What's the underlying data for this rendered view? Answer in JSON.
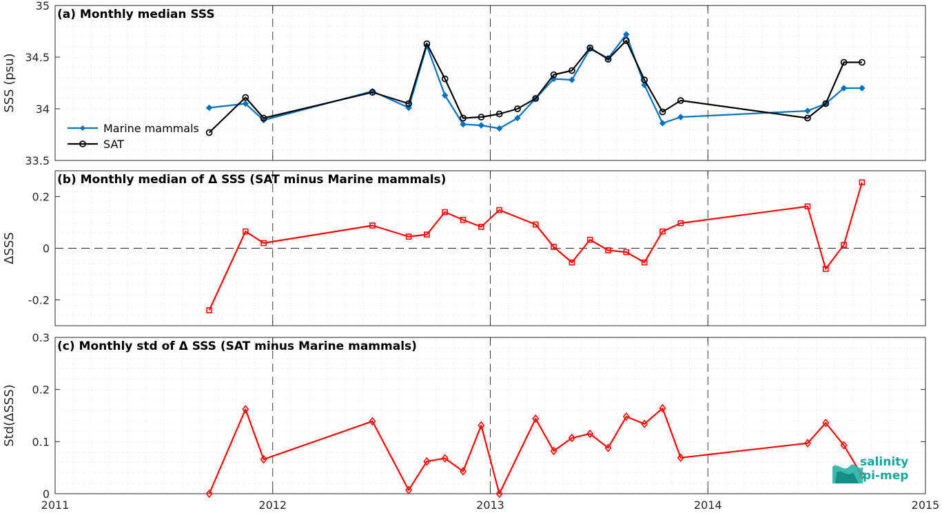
{
  "chart_data": [
    {
      "type": "line",
      "title": "(a) Monthly median SSS",
      "ylabel": "SSS (psu)",
      "ylim": [
        33.5,
        35
      ],
      "yticks": [
        "33.5",
        "34",
        "34.5",
        "35"
      ],
      "grid": true,
      "legend_position": "left",
      "series": [
        {
          "name": "Marine mammals",
          "color": "#0072BD",
          "marker": "diamond-filled",
          "x": [
            "2011-09",
            "2011-11",
            "2011-12",
            "2012-06",
            "2012-08",
            "2012-09",
            "2012-10",
            "2012-11",
            "2012-12",
            "2013-01",
            "2013-02",
            "2013-03",
            "2013-04",
            "2013-05",
            "2013-06",
            "2013-07",
            "2013-08",
            "2013-09",
            "2013-10",
            "2013-11",
            "2014-06",
            "2014-07",
            "2014-08",
            "2014-09"
          ],
          "y": [
            34.01,
            34.05,
            33.89,
            34.17,
            34.01,
            34.61,
            34.13,
            33.85,
            33.84,
            33.81,
            33.91,
            34.1,
            34.29,
            34.28,
            34.58,
            34.49,
            34.72,
            34.23,
            33.86,
            33.92,
            33.98,
            34.05,
            34.2,
            34.2
          ]
        },
        {
          "name": "SAT",
          "color": "#000000",
          "marker": "circle-open",
          "x": [
            "2011-09",
            "2011-11",
            "2011-12",
            "2012-06",
            "2012-08",
            "2012-09",
            "2012-10",
            "2012-11",
            "2012-12",
            "2013-01",
            "2013-02",
            "2013-03",
            "2013-04",
            "2013-05",
            "2013-06",
            "2013-07",
            "2013-08",
            "2013-09",
            "2013-10",
            "2013-11",
            "2014-06",
            "2014-07",
            "2014-08",
            "2014-09"
          ],
          "y": [
            33.77,
            34.11,
            33.91,
            34.16,
            34.05,
            34.63,
            34.29,
            33.91,
            33.92,
            33.95,
            34.0,
            34.1,
            34.33,
            34.37,
            34.59,
            34.48,
            34.66,
            34.28,
            33.97,
            34.08,
            33.91,
            34.05,
            34.45,
            34.45
          ]
        }
      ]
    },
    {
      "type": "line",
      "title": "(b) Monthly median of Δ SSS (SAT minus Marine mammals)",
      "ylabel": "ΔSSS",
      "ylim": [
        -0.3,
        0.3
      ],
      "yticks": [
        "-0.2",
        "0",
        "0.2"
      ],
      "zero_line": true,
      "grid": true,
      "series": [
        {
          "color": "#FF0000",
          "marker": "square-open",
          "x": [
            "2011-09",
            "2011-11",
            "2011-12",
            "2012-06",
            "2012-08",
            "2012-09",
            "2012-10",
            "2012-11",
            "2012-12",
            "2013-01",
            "2013-03",
            "2013-04",
            "2013-05",
            "2013-06",
            "2013-07",
            "2013-08",
            "2013-09",
            "2013-10",
            "2013-11",
            "2014-06",
            "2014-07",
            "2014-08",
            "2014-09"
          ],
          "y": [
            -0.24,
            0.065,
            0.02,
            0.088,
            0.045,
            0.053,
            0.14,
            0.11,
            0.083,
            0.148,
            0.092,
            0.005,
            -0.055,
            0.033,
            -0.008,
            -0.015,
            -0.055,
            0.065,
            0.097,
            0.162,
            -0.08,
            0.013,
            0.255
          ]
        }
      ]
    },
    {
      "type": "line",
      "title": "(c) Monthly std of Δ SSS (SAT minus Marine mammals)",
      "ylabel": "Std(ΔSSS)",
      "ylim": [
        0,
        0.3
      ],
      "yticks": [
        "0",
        "0.1",
        "0.2",
        "0.3"
      ],
      "xlim": [
        "2011",
        "2015"
      ],
      "xticks": [
        "2011",
        "2012",
        "2013",
        "2014",
        "2015"
      ],
      "grid": true,
      "series": [
        {
          "color": "#FF0000",
          "marker": "diamond-open",
          "x": [
            "2011-09",
            "2011-11",
            "2011-12",
            "2012-06",
            "2012-08",
            "2012-09",
            "2012-10",
            "2012-11",
            "2012-12",
            "2013-01",
            "2013-03",
            "2013-04",
            "2013-05",
            "2013-06",
            "2013-07",
            "2013-08",
            "2013-09",
            "2013-10",
            "2013-11",
            "2014-06",
            "2014-07",
            "2014-08",
            "2014-09"
          ],
          "y": [
            0.0,
            0.162,
            0.066,
            0.139,
            0.007,
            0.062,
            0.068,
            0.043,
            0.131,
            0.0,
            0.144,
            0.082,
            0.107,
            0.115,
            0.088,
            0.148,
            0.134,
            0.164,
            0.069,
            0.097,
            0.136,
            0.093,
            0.035
          ]
        }
      ]
    }
  ],
  "logo": {
    "line1": "salinity",
    "line2": "pi-mep"
  }
}
